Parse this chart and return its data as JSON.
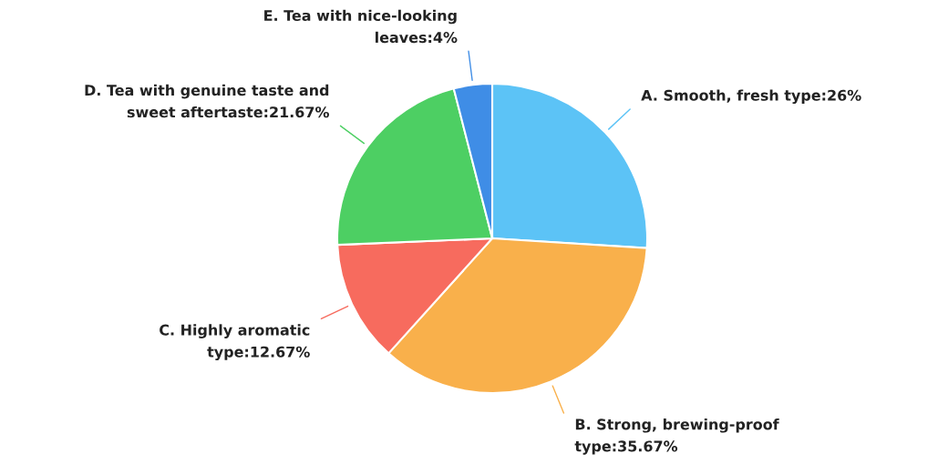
{
  "chart_data": {
    "type": "pie",
    "categories": [
      "A. Smooth, fresh type",
      "B. Strong, brewing-proof\ntype",
      "C. Highly aromatic\ntype",
      "D. Tea with genuine taste and\nsweet aftertaste",
      "E. Tea with nice-looking\nleaves"
    ],
    "values": [
      26,
      35.67,
      12.67,
      21.67,
      4
    ],
    "value_labels": [
      "26%",
      "35.67%",
      "12.67%",
      "21.67%",
      "4%"
    ],
    "colors": [
      "#5cc3f6",
      "#f9b04b",
      "#f76b5e",
      "#4dcf63",
      "#3f8de6"
    ]
  }
}
